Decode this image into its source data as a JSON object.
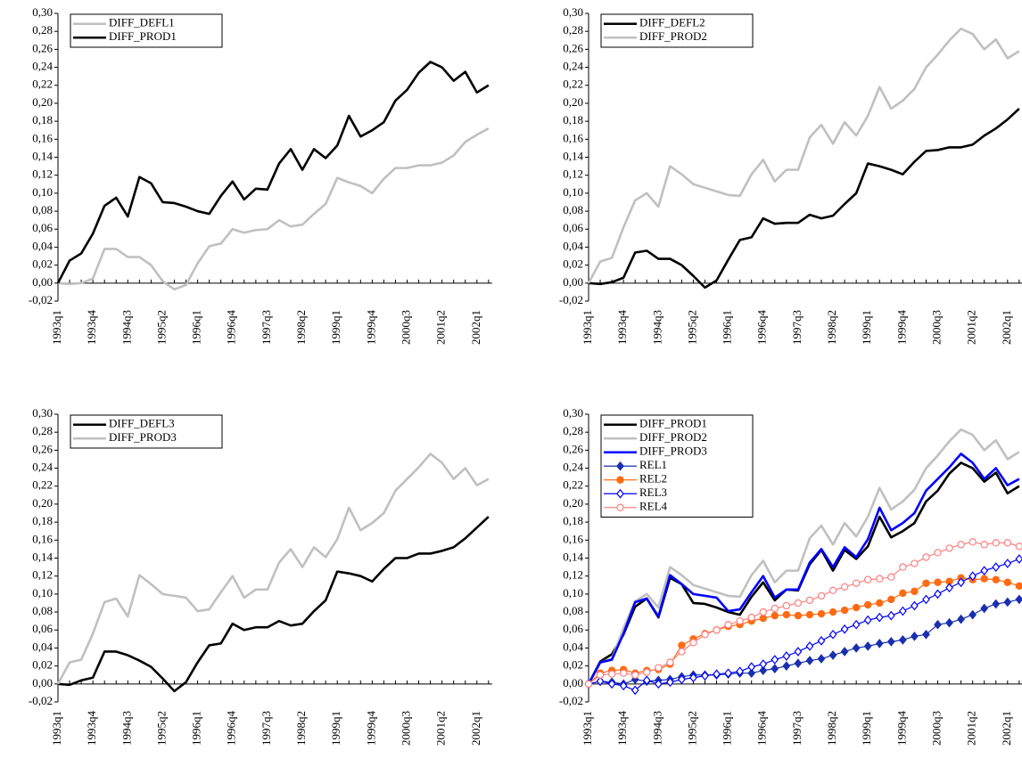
{
  "chart_data": [
    {
      "type": "line",
      "legend": "upper left",
      "categories": [
        "1993q1",
        null,
        null,
        "1993q4",
        null,
        null,
        "1994q3",
        null,
        null,
        "1995q2",
        null,
        null,
        "1996q1",
        null,
        null,
        "1996q4",
        null,
        null,
        "1997q3",
        null,
        null,
        "1998q2",
        null,
        null,
        "1999q1",
        null,
        null,
        "1999q4",
        null,
        null,
        "2000q3",
        null,
        null,
        "2001q2",
        null,
        null,
        "2002q1",
        null
      ],
      "ylim": [
        -0.02,
        0.3
      ],
      "yticks": [
        {
          "value": -0.02,
          "label": "-0,02"
        },
        {
          "value": 0,
          "label": "0,00"
        },
        {
          "value": 0.02,
          "label": "0,02"
        },
        {
          "value": 0.04,
          "label": "0,04"
        },
        {
          "value": 0.06,
          "label": "0,06"
        },
        {
          "value": 0.08,
          "label": "0,08"
        },
        {
          "value": 0.1,
          "label": "0,10"
        },
        {
          "value": 0.12,
          "label": "0,12"
        },
        {
          "value": 0.14,
          "label": "0,14"
        },
        {
          "value": 0.16,
          "label": "0,16"
        },
        {
          "value": 0.18,
          "label": "0,18"
        },
        {
          "value": 0.2,
          "label": "0,20"
        },
        {
          "value": 0.22,
          "label": "0,22"
        },
        {
          "value": 0.24,
          "label": "0,24"
        },
        {
          "value": 0.26,
          "label": "0,26"
        },
        {
          "value": 0.28,
          "label": "0,28"
        },
        {
          "value": 0.3,
          "label": "0,30"
        }
      ],
      "series": [
        {
          "name": "DIFF_DEFL1",
          "color": "#c0c0c0",
          "values": [
            0,
            -0.001,
            0,
            0.005,
            0.038,
            0.038,
            0.029,
            0.029,
            0.02,
            0.002,
            -0.007,
            -0.002,
            0.022,
            0.041,
            0.044,
            0.06,
            0.056,
            0.059,
            0.06,
            0.07,
            0.063,
            0.065,
            0.077,
            0.088,
            0.117,
            0.112,
            0.108,
            0.1,
            0.116,
            0.128,
            0.128,
            0.131,
            0.131,
            0.134,
            0.142,
            0.157,
            0.165,
            0.172
          ]
        },
        {
          "name": "DIFF_PROD1",
          "color": "#000000",
          "values": [
            0,
            0.025,
            0.033,
            0.055,
            0.086,
            0.095,
            0.074,
            0.118,
            0.111,
            0.09,
            0.089,
            0.085,
            0.08,
            0.077,
            0.097,
            0.113,
            0.093,
            0.105,
            0.104,
            0.133,
            0.149,
            0.126,
            0.149,
            0.139,
            0.153,
            0.186,
            0.163,
            0.17,
            0.179,
            0.203,
            0.215,
            0.234,
            0.246,
            0.24,
            0.225,
            0.235,
            0.212,
            0.22
          ]
        }
      ]
    },
    {
      "type": "line",
      "legend": "upper left",
      "categories": [
        "1993q1",
        null,
        null,
        "1993q4",
        null,
        null,
        "1994q3",
        null,
        null,
        "1995q2",
        null,
        null,
        "1996q1",
        null,
        null,
        "1996q4",
        null,
        null,
        "1997q3",
        null,
        null,
        "1998q2",
        null,
        null,
        "1999q1",
        null,
        null,
        "1999q4",
        null,
        null,
        "2000q3",
        null,
        null,
        "2001q2",
        null,
        null,
        "2002q1",
        null
      ],
      "ylim": [
        -0.02,
        0.3
      ],
      "yticks": [
        {
          "value": -0.02,
          "label": "-0,02"
        },
        {
          "value": 0,
          "label": "0,00"
        },
        {
          "value": 0.02,
          "label": "0,02"
        },
        {
          "value": 0.04,
          "label": "0,04"
        },
        {
          "value": 0.06,
          "label": "0,06"
        },
        {
          "value": 0.08,
          "label": "0,08"
        },
        {
          "value": 0.1,
          "label": "0,10"
        },
        {
          "value": 0.12,
          "label": "0,12"
        },
        {
          "value": 0.14,
          "label": "0,14"
        },
        {
          "value": 0.16,
          "label": "0,16"
        },
        {
          "value": 0.18,
          "label": "0,18"
        },
        {
          "value": 0.2,
          "label": "0,20"
        },
        {
          "value": 0.22,
          "label": "0,22"
        },
        {
          "value": 0.24,
          "label": "0,24"
        },
        {
          "value": 0.26,
          "label": "0,26"
        },
        {
          "value": 0.28,
          "label": "0,28"
        },
        {
          "value": 0.3,
          "label": "0,30"
        }
      ],
      "series": [
        {
          "name": "DIFF_DEFL2",
          "color": "#000000",
          "values": [
            0,
            -0.001,
            0.001,
            0.006,
            0.034,
            0.036,
            0.027,
            0.027,
            0.02,
            0.008,
            -0.005,
            0.003,
            0.026,
            0.048,
            0.051,
            0.072,
            0.066,
            0.067,
            0.067,
            0.076,
            0.072,
            0.075,
            0.088,
            0.1,
            0.133,
            0.13,
            0.126,
            0.121,
            0.135,
            0.147,
            0.148,
            0.151,
            0.151,
            0.154,
            0.164,
            0.172,
            0.182,
            0.194
          ]
        },
        {
          "name": "DIFF_PROD2",
          "color": "#c0c0c0",
          "values": [
            0,
            0.024,
            0.028,
            0.062,
            0.092,
            0.1,
            0.085,
            0.13,
            0.121,
            0.11,
            0.106,
            0.102,
            0.098,
            0.097,
            0.121,
            0.137,
            0.113,
            0.126,
            0.126,
            0.162,
            0.176,
            0.155,
            0.179,
            0.164,
            0.186,
            0.218,
            0.194,
            0.203,
            0.216,
            0.24,
            0.254,
            0.27,
            0.283,
            0.277,
            0.26,
            0.271,
            0.25,
            0.258
          ]
        }
      ]
    },
    {
      "type": "line",
      "legend": "upper left",
      "categories": [
        "1993q1",
        null,
        null,
        "1993q4",
        null,
        null,
        "1994q3",
        null,
        null,
        "1995q2",
        null,
        null,
        "1996q1",
        null,
        null,
        "1996q4",
        null,
        null,
        "1997q3",
        null,
        null,
        "1998q2",
        null,
        null,
        "1999q1",
        null,
        null,
        "1999q4",
        null,
        null,
        "2000q3",
        null,
        null,
        "2001q2",
        null,
        null,
        "2002q1",
        null
      ],
      "ylim": [
        -0.02,
        0.3
      ],
      "yticks": [
        {
          "value": -0.02,
          "label": "-0,02"
        },
        {
          "value": 0,
          "label": "0,00"
        },
        {
          "value": 0.02,
          "label": "0,02"
        },
        {
          "value": 0.04,
          "label": "0,04"
        },
        {
          "value": 0.06,
          "label": "0,06"
        },
        {
          "value": 0.08,
          "label": "0,08"
        },
        {
          "value": 0.1,
          "label": "0,10"
        },
        {
          "value": 0.12,
          "label": "0,12"
        },
        {
          "value": 0.14,
          "label": "0,14"
        },
        {
          "value": 0.16,
          "label": "0,16"
        },
        {
          "value": 0.18,
          "label": "0,18"
        },
        {
          "value": 0.2,
          "label": "0,20"
        },
        {
          "value": 0.22,
          "label": "0,22"
        },
        {
          "value": 0.24,
          "label": "0,24"
        },
        {
          "value": 0.26,
          "label": "0,26"
        },
        {
          "value": 0.28,
          "label": "0,28"
        },
        {
          "value": 0.3,
          "label": "0,30"
        }
      ],
      "series": [
        {
          "name": "DIFF_DEFL3",
          "color": "#000000",
          "values": [
            0,
            -0.001,
            0.004,
            0.007,
            0.036,
            0.036,
            0.032,
            0.026,
            0.019,
            0.006,
            -0.008,
            0.002,
            0.024,
            0.043,
            0.045,
            0.067,
            0.06,
            0.063,
            0.063,
            0.07,
            0.065,
            0.067,
            0.081,
            0.093,
            0.125,
            0.123,
            0.12,
            0.114,
            0.128,
            0.14,
            0.14,
            0.145,
            0.145,
            0.148,
            0.152,
            0.162,
            0.174,
            0.186
          ]
        },
        {
          "name": "DIFF_PROD3",
          "color": "#c0c0c0",
          "values": [
            0,
            0.024,
            0.027,
            0.056,
            0.091,
            0.095,
            0.075,
            0.121,
            0.111,
            0.1,
            0.098,
            0.096,
            0.081,
            0.083,
            0.102,
            0.12,
            0.096,
            0.105,
            0.105,
            0.135,
            0.15,
            0.13,
            0.152,
            0.141,
            0.161,
            0.196,
            0.171,
            0.179,
            0.19,
            0.215,
            0.228,
            0.241,
            0.256,
            0.246,
            0.228,
            0.24,
            0.221,
            0.228
          ]
        }
      ]
    },
    {
      "type": "line",
      "legend": "upper left",
      "categories": [
        "1993q1",
        null,
        null,
        "1993q4",
        null,
        null,
        "1994q3",
        null,
        null,
        "1995q2",
        null,
        null,
        "1996q1",
        null,
        null,
        "1996q4",
        null,
        null,
        "1997q3",
        null,
        null,
        "1998q2",
        null,
        null,
        "1999q1",
        null,
        null,
        "1999q4",
        null,
        null,
        "2000q3",
        null,
        null,
        "2001q2",
        null,
        null,
        "2002q1",
        null
      ],
      "ylim": [
        -0.02,
        0.3
      ],
      "yticks": [
        {
          "value": -0.02,
          "label": "-0,02"
        },
        {
          "value": 0,
          "label": "0,00"
        },
        {
          "value": 0.02,
          "label": "0,02"
        },
        {
          "value": 0.04,
          "label": "0,04"
        },
        {
          "value": 0.06,
          "label": "0,06"
        },
        {
          "value": 0.08,
          "label": "0,08"
        },
        {
          "value": 0.1,
          "label": "0,10"
        },
        {
          "value": 0.12,
          "label": "0,12"
        },
        {
          "value": 0.14,
          "label": "0,14"
        },
        {
          "value": 0.16,
          "label": "0,16"
        },
        {
          "value": 0.18,
          "label": "0,18"
        },
        {
          "value": 0.2,
          "label": "0,20"
        },
        {
          "value": 0.22,
          "label": "0,22"
        },
        {
          "value": 0.24,
          "label": "0,24"
        },
        {
          "value": 0.26,
          "label": "0,26"
        },
        {
          "value": 0.28,
          "label": "0,28"
        },
        {
          "value": 0.3,
          "label": "0,30"
        }
      ],
      "series": [
        {
          "name": "DIFF_PROD1",
          "color": "#000000",
          "values": [
            0,
            0.025,
            0.033,
            0.055,
            0.086,
            0.095,
            0.074,
            0.118,
            0.111,
            0.09,
            0.089,
            0.085,
            0.08,
            0.077,
            0.097,
            0.113,
            0.093,
            0.105,
            0.104,
            0.133,
            0.149,
            0.126,
            0.149,
            0.139,
            0.153,
            0.186,
            0.163,
            0.17,
            0.179,
            0.203,
            0.215,
            0.234,
            0.246,
            0.24,
            0.225,
            0.235,
            0.212,
            0.22
          ]
        },
        {
          "name": "DIFF_PROD2",
          "color": "#c0c0c0",
          "values": [
            0,
            0.024,
            0.028,
            0.062,
            0.092,
            0.1,
            0.085,
            0.13,
            0.121,
            0.11,
            0.106,
            0.102,
            0.098,
            0.097,
            0.121,
            0.137,
            0.113,
            0.126,
            0.126,
            0.162,
            0.176,
            0.155,
            0.179,
            0.164,
            0.186,
            0.218,
            0.194,
            0.203,
            0.216,
            0.24,
            0.254,
            0.27,
            0.283,
            0.277,
            0.26,
            0.271,
            0.25,
            0.258
          ]
        },
        {
          "name": "DIFF_PROD3",
          "color": "#0000ff",
          "values": [
            0,
            0.024,
            0.027,
            0.056,
            0.091,
            0.095,
            0.075,
            0.121,
            0.111,
            0.1,
            0.098,
            0.096,
            0.081,
            0.083,
            0.102,
            0.12,
            0.096,
            0.105,
            0.105,
            0.135,
            0.15,
            0.13,
            0.152,
            0.141,
            0.161,
            0.196,
            0.171,
            0.179,
            0.19,
            0.215,
            0.228,
            0.241,
            0.256,
            0.246,
            0.228,
            0.24,
            0.221,
            0.228
          ]
        },
        {
          "name": "REL1",
          "color": "#1a2fb0",
          "marker": "diamond",
          "marker_fill": "filled",
          "values": [
            0,
            0.003,
            0.002,
            0,
            0.005,
            0.003,
            0.004,
            0.005,
            0.008,
            0.01,
            0.01,
            0.01,
            0.011,
            0.012,
            0.012,
            0.015,
            0.017,
            0.02,
            0.023,
            0.026,
            0.028,
            0.032,
            0.036,
            0.04,
            0.042,
            0.045,
            0.047,
            0.049,
            0.053,
            0.055,
            0.066,
            0.068,
            0.072,
            0.077,
            0.084,
            0.089,
            0.091,
            0.094
          ]
        },
        {
          "name": "REL2",
          "color": "#ff6a13",
          "marker": "circle",
          "marker_fill": "filled",
          "values": [
            0,
            0.012,
            0.015,
            0.016,
            0.012,
            0.015,
            0.016,
            0.022,
            0.043,
            0.05,
            0.056,
            0.06,
            0.064,
            0.066,
            0.07,
            0.073,
            0.076,
            0.077,
            0.076,
            0.077,
            0.078,
            0.08,
            0.082,
            0.085,
            0.088,
            0.09,
            0.094,
            0.101,
            0.103,
            0.112,
            0.113,
            0.114,
            0.118,
            0.116,
            0.117,
            0.116,
            0.113,
            0.109
          ]
        },
        {
          "name": "REL3",
          "color": "#0000ff",
          "marker": "diamond",
          "marker_fill": "open",
          "values": [
            0,
            0.003,
            0,
            -0.002,
            -0.007,
            0.004,
            0,
            0.002,
            0.005,
            0.007,
            0.009,
            0.011,
            0.012,
            0.014,
            0.019,
            0.022,
            0.027,
            0.031,
            0.036,
            0.042,
            0.048,
            0.055,
            0.061,
            0.066,
            0.071,
            0.074,
            0.076,
            0.081,
            0.087,
            0.094,
            0.1,
            0.107,
            0.113,
            0.12,
            0.126,
            0.13,
            0.134,
            0.139
          ]
        },
        {
          "name": "REL4",
          "color": "#ff8080",
          "marker": "circle",
          "marker_fill": "open",
          "values": [
            0,
            0.01,
            0.011,
            0.012,
            0.01,
            0.013,
            0.018,
            0.024,
            0.036,
            0.046,
            0.055,
            0.06,
            0.066,
            0.07,
            0.074,
            0.08,
            0.084,
            0.087,
            0.09,
            0.093,
            0.098,
            0.104,
            0.108,
            0.112,
            0.116,
            0.117,
            0.119,
            0.13,
            0.134,
            0.141,
            0.146,
            0.151,
            0.155,
            0.158,
            0.155,
            0.157,
            0.157,
            0.153
          ]
        }
      ]
    }
  ]
}
